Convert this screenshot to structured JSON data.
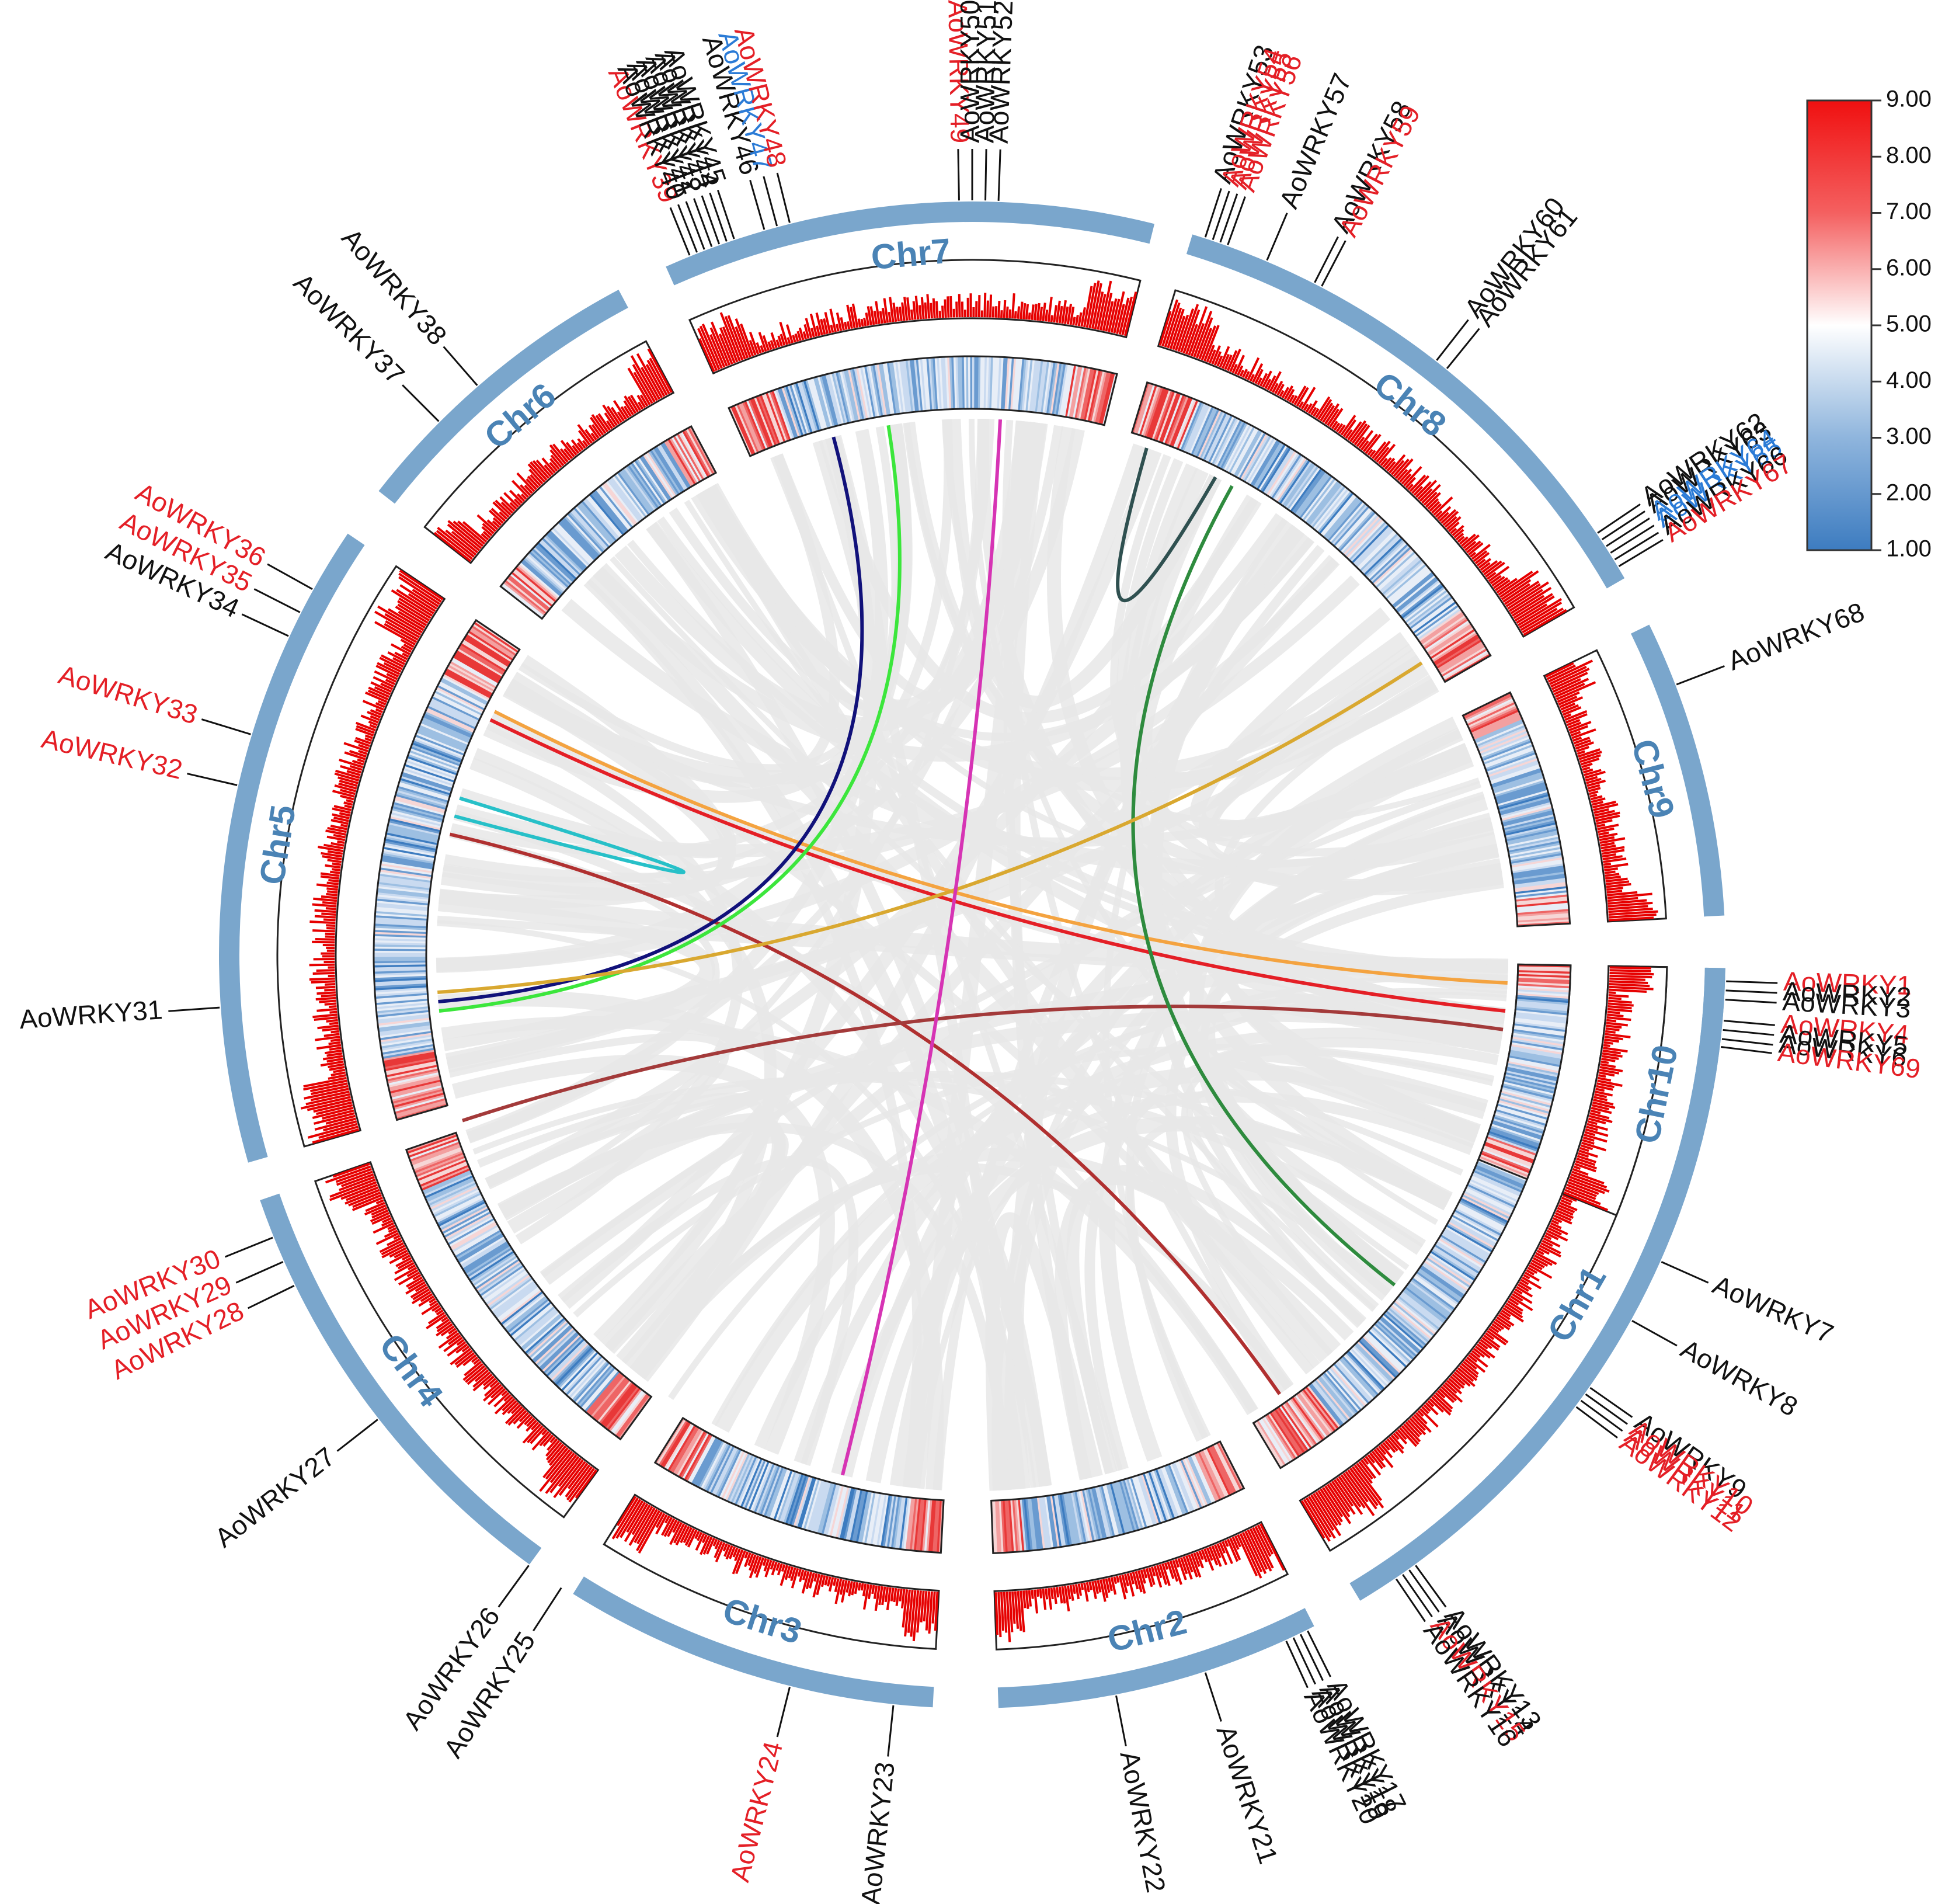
{
  "chart_data": {
    "type": "circos",
    "title": "",
    "colors": {
      "chromosome": "#7aa6cc",
      "chr_label": "#4a83b5",
      "highlight_red": "#e41f26",
      "highlight_blue": "#2b7bd6",
      "normal": "#111111",
      "density": "#e60000",
      "background_links": "#e8e8e8"
    },
    "chromosomes": [
      {
        "name": "Chr1",
        "start_deg": 91,
        "end_deg": 149
      },
      {
        "name": "Chr2",
        "start_deg": 153,
        "end_deg": 178
      },
      {
        "name": "Chr3",
        "start_deg": 183,
        "end_deg": 212
      },
      {
        "name": "Chr4",
        "start_deg": 216,
        "end_deg": 251
      },
      {
        "name": "Chr5",
        "start_deg": 254,
        "end_deg": 304
      },
      {
        "name": "Chr6",
        "start_deg": 308,
        "end_deg": 332
      },
      {
        "name": "Chr7",
        "start_deg": 336,
        "end_deg": 374
      },
      {
        "name": "Chr8",
        "start_deg": 377,
        "end_deg": 420
      },
      {
        "name": "Chr9",
        "start_deg": 424,
        "end_deg": 447
      },
      {
        "name": "Chr10",
        "start_deg": 451,
        "end_deg": 472
      }
    ],
    "genes": [
      {
        "name": "AoWRKY1",
        "color": "red",
        "deg": 92
      },
      {
        "name": "AoWRKY2",
        "color": "black",
        "deg": 92.7
      },
      {
        "name": "AoWRKY3",
        "color": "black",
        "deg": 93.4
      },
      {
        "name": "AoWRKY4",
        "color": "red",
        "deg": 95
      },
      {
        "name": "AoWRKY5",
        "color": "black",
        "deg": 95.7
      },
      {
        "name": "AoWRKY6",
        "color": "black",
        "deg": 96.4
      },
      {
        "name": "AoWRKY7",
        "color": "black",
        "deg": 114
      },
      {
        "name": "AoWRKY8",
        "color": "black",
        "deg": 119
      },
      {
        "name": "AoWRKY9",
        "color": "black",
        "deg": 125
      },
      {
        "name": "AoWRKY10",
        "color": "red",
        "deg": 125.6
      },
      {
        "name": "AoWRKY11",
        "color": "red",
        "deg": 126.2
      },
      {
        "name": "AoWRKY12",
        "color": "red",
        "deg": 126.8
      },
      {
        "name": "AoWRKY13",
        "color": "black",
        "deg": 144
      },
      {
        "name": "AoWRKY14",
        "color": "black",
        "deg": 144.6
      },
      {
        "name": "AoWRKY15",
        "color": "red",
        "deg": 145.2
      },
      {
        "name": "AoWRKY16",
        "color": "black",
        "deg": 145.8
      },
      {
        "name": "AoWRKY17",
        "color": "black",
        "deg": 153.6
      },
      {
        "name": "AoWRKY18",
        "color": "black",
        "deg": 154.2
      },
      {
        "name": "AoWRKY19",
        "color": "black",
        "deg": 154.8
      },
      {
        "name": "AoWRKY20",
        "color": "black",
        "deg": 155.4
      },
      {
        "name": "AoWRKY21",
        "color": "black",
        "deg": 162
      },
      {
        "name": "AoWRKY22",
        "color": "black",
        "deg": 169
      },
      {
        "name": "AoWRKY23",
        "color": "black",
        "deg": 186
      },
      {
        "name": "AoWRKY24",
        "color": "red",
        "deg": 194
      },
      {
        "name": "AoWRKY25",
        "color": "black",
        "deg": 213
      },
      {
        "name": "AoWRKY26",
        "color": "black",
        "deg": 216
      },
      {
        "name": "AoWRKY27",
        "color": "black",
        "deg": 232
      },
      {
        "name": "AoWRKY28",
        "color": "red",
        "deg": 244
      },
      {
        "name": "AoWRKY29",
        "color": "red",
        "deg": 246
      },
      {
        "name": "AoWRKY30",
        "color": "red",
        "deg": 248
      },
      {
        "name": "AoWRKY31",
        "color": "black",
        "deg": 266
      },
      {
        "name": "AoWRKY32",
        "color": "red",
        "deg": 283
      },
      {
        "name": "AoWRKY33",
        "color": "red",
        "deg": 287
      },
      {
        "name": "AoWRKY34",
        "color": "black",
        "deg": 295
      },
      {
        "name": "AoWRKY35",
        "color": "red",
        "deg": 297
      },
      {
        "name": "AoWRKY36",
        "color": "red",
        "deg": 299
      },
      {
        "name": "AoWRKY37",
        "color": "black",
        "deg": 315
      },
      {
        "name": "AoWRKY38",
        "color": "black",
        "deg": 319
      },
      {
        "name": "AoWRKY39",
        "color": "red",
        "deg": 338
      },
      {
        "name": "AoWRKY40",
        "color": "black",
        "deg": 338.6
      },
      {
        "name": "AoWRKY41",
        "color": "black",
        "deg": 339.2
      },
      {
        "name": "AoWRKY42",
        "color": "black",
        "deg": 339.8
      },
      {
        "name": "AoWRKY43",
        "color": "black",
        "deg": 340.4
      },
      {
        "name": "AoWRKY44",
        "color": "black",
        "deg": 341
      },
      {
        "name": "AoWRKY45",
        "color": "black",
        "deg": 341.6
      },
      {
        "name": "AoWRKY46",
        "color": "black",
        "deg": 344
      },
      {
        "name": "AoWRKY47",
        "color": "blue",
        "deg": 345
      },
      {
        "name": "AoWRKY48",
        "color": "red",
        "deg": 346
      },
      {
        "name": "AoWRKY49",
        "color": "red",
        "deg": 359
      },
      {
        "name": "AoWRKY50",
        "color": "black",
        "deg": 360
      },
      {
        "name": "AoWRKY51",
        "color": "black",
        "deg": 361
      },
      {
        "name": "AoWRKY52",
        "color": "black",
        "deg": 362
      },
      {
        "name": "AoWRKY53",
        "color": "black",
        "deg": 378
      },
      {
        "name": "AoWRKY54",
        "color": "red",
        "deg": 378.6
      },
      {
        "name": "AoWRKY55",
        "color": "red",
        "deg": 379.2
      },
      {
        "name": "AoWRKY56",
        "color": "red",
        "deg": 379.8
      },
      {
        "name": "AoWRKY57",
        "color": "black",
        "deg": 383
      },
      {
        "name": "AoWRKY58",
        "color": "black",
        "deg": 387
      },
      {
        "name": "AoWRKY59",
        "color": "red",
        "deg": 387.6
      },
      {
        "name": "AoWRKY60",
        "color": "black",
        "deg": 398
      },
      {
        "name": "AoWRKY61",
        "color": "black",
        "deg": 399
      },
      {
        "name": "AoWRKY62",
        "color": "black",
        "deg": 416
      },
      {
        "name": "AoWRKY63",
        "color": "black",
        "deg": 416.6
      },
      {
        "name": "AoWRKY64",
        "color": "blue",
        "deg": 417.2
      },
      {
        "name": "AoWRKY65",
        "color": "blue",
        "deg": 417.8
      },
      {
        "name": "AoWRKY66",
        "color": "black",
        "deg": 418.4
      },
      {
        "name": "AoWRKY67",
        "color": "red",
        "deg": 419
      },
      {
        "name": "AoWRKY68",
        "color": "black",
        "deg": 429
      },
      {
        "name": "AoWRKY69",
        "color": "red",
        "deg": 457
      }
    ],
    "highlight_links": [
      {
        "from_deg": 93,
        "to_deg": 297,
        "color": "#f4a340"
      },
      {
        "from_deg": 96,
        "to_deg": 296,
        "color": "#e41f26"
      },
      {
        "from_deg": 283,
        "to_deg": 145,
        "color": "#b03030"
      },
      {
        "from_deg": 287,
        "to_deg": 285,
        "color": "#27c0c8",
        "depth": 0.55
      },
      {
        "from_deg": 252,
        "to_deg": 458,
        "color": "#a33a3a"
      },
      {
        "from_deg": 128,
        "to_deg": 389,
        "color": "#2e8b3e"
      },
      {
        "from_deg": 265,
        "to_deg": 345,
        "color": "#11117a"
      },
      {
        "from_deg": 264,
        "to_deg": 351,
        "color": "#3ce63c"
      },
      {
        "from_deg": 266,
        "to_deg": 417,
        "color": "#d9a830"
      },
      {
        "from_deg": 363,
        "to_deg": 194,
        "color": "#d634b4"
      },
      {
        "from_deg": 379,
        "to_deg": 387,
        "color": "#2f5050",
        "depth": 0.35
      }
    ],
    "background_link_count": 140,
    "colorbar": {
      "min": 1.0,
      "max": 9.0,
      "ticks": [
        "9.00",
        "8.00",
        "7.00",
        "6.00",
        "5.00",
        "4.00",
        "3.00",
        "2.00",
        "1.00"
      ],
      "low_color": "#3d7cc0",
      "mid_color": "#ffffff",
      "high_color": "#f01010"
    }
  }
}
